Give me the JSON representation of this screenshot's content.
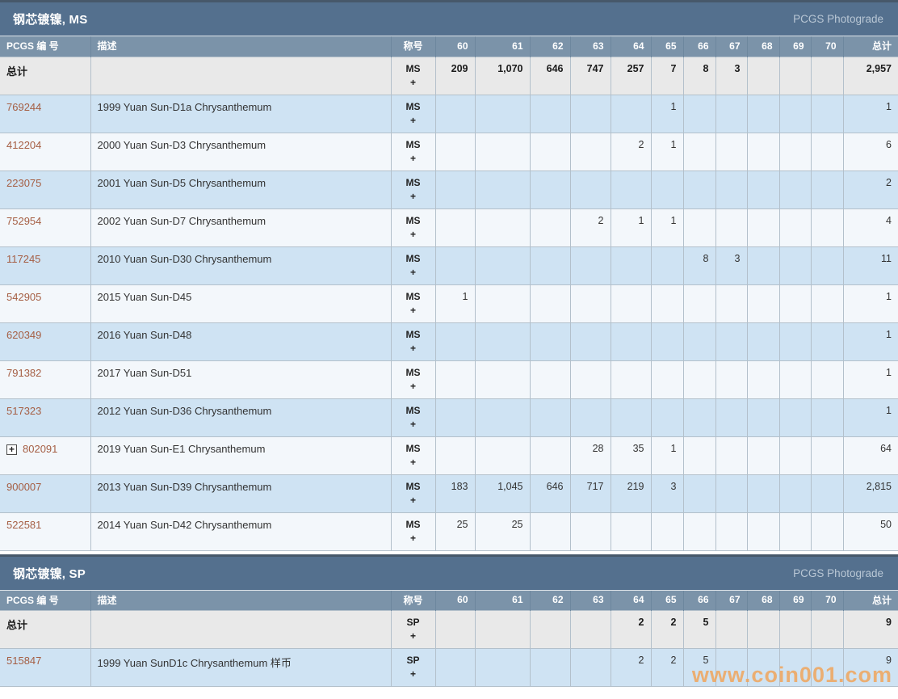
{
  "watermark": {
    "text": "www.coin001.com",
    "color": "#f0a55c"
  },
  "grades": [
    "60",
    "61",
    "62",
    "63",
    "64",
    "65",
    "66",
    "67",
    "68",
    "69",
    "70"
  ],
  "columns": {
    "pcgs": "PCGS 编 号",
    "desc": "描述",
    "designation": "称号",
    "total": "总计"
  },
  "colors": {
    "section_bar": "#54708e",
    "header_row": "#7b93a9",
    "totals_row_bg": "#e9e9e9",
    "row_blue": "#cfe3f3",
    "row_white": "#f3f7fb",
    "pcgs_link": "#a55e43",
    "watermark": "#f0a55c"
  },
  "sections": [
    {
      "title": "钢芯镀镍, MS",
      "photograde_label": "PCGS Photograde",
      "designation": "MS",
      "plus": "+",
      "totals_label": "总计",
      "totals": {
        "values": [
          "209",
          "1,070",
          "646",
          "747",
          "257",
          "7",
          "8",
          "3",
          "",
          "",
          ""
        ],
        "total": "2,957"
      },
      "rows": [
        {
          "pcgs": "769244",
          "expand": false,
          "desc": "1999 Yuan Sun-D1a Chrysanthemum",
          "values": [
            "",
            "",
            "",
            "",
            "",
            "1",
            "",
            "",
            "",
            "",
            ""
          ],
          "total": "1"
        },
        {
          "pcgs": "412204",
          "expand": false,
          "desc": "2000 Yuan Sun-D3 Chrysanthemum",
          "values": [
            "",
            "",
            "",
            "",
            "2",
            "1",
            "",
            "",
            "",
            "",
            ""
          ],
          "total": "6"
        },
        {
          "pcgs": "223075",
          "expand": false,
          "desc": "2001 Yuan Sun-D5 Chrysanthemum",
          "values": [
            "",
            "",
            "",
            "",
            "",
            "",
            "",
            "",
            "",
            "",
            ""
          ],
          "total": "2"
        },
        {
          "pcgs": "752954",
          "expand": false,
          "desc": "2002 Yuan Sun-D7 Chrysanthemum",
          "values": [
            "",
            "",
            "",
            "2",
            "1",
            "1",
            "",
            "",
            "",
            "",
            ""
          ],
          "total": "4"
        },
        {
          "pcgs": "117245",
          "expand": false,
          "desc": "2010 Yuan Sun-D30 Chrysanthemum",
          "values": [
            "",
            "",
            "",
            "",
            "",
            "",
            "8",
            "3",
            "",
            "",
            ""
          ],
          "total": "11"
        },
        {
          "pcgs": "542905",
          "expand": false,
          "desc": "2015 Yuan Sun-D45",
          "values": [
            "1",
            "",
            "",
            "",
            "",
            "",
            "",
            "",
            "",
            "",
            ""
          ],
          "total": "1"
        },
        {
          "pcgs": "620349",
          "expand": false,
          "desc": "2016 Yuan Sun-D48",
          "values": [
            "",
            "",
            "",
            "",
            "",
            "",
            "",
            "",
            "",
            "",
            ""
          ],
          "total": "1"
        },
        {
          "pcgs": "791382",
          "expand": false,
          "desc": "2017 Yuan Sun-D51",
          "values": [
            "",
            "",
            "",
            "",
            "",
            "",
            "",
            "",
            "",
            "",
            ""
          ],
          "total": "1"
        },
        {
          "pcgs": "517323",
          "expand": false,
          "desc": "2012 Yuan Sun-D36 Chrysanthemum",
          "values": [
            "",
            "",
            "",
            "",
            "",
            "",
            "",
            "",
            "",
            "",
            ""
          ],
          "total": "1"
        },
        {
          "pcgs": "802091",
          "expand": true,
          "desc": "2019 Yuan Sun-E1 Chrysanthemum",
          "values": [
            "",
            "",
            "",
            "28",
            "35",
            "1",
            "",
            "",
            "",
            "",
            ""
          ],
          "total": "64"
        },
        {
          "pcgs": "900007",
          "expand": false,
          "desc": "2013 Yuan Sun-D39 Chrysanthemum",
          "values": [
            "183",
            "1,045",
            "646",
            "717",
            "219",
            "3",
            "",
            "",
            "",
            "",
            ""
          ],
          "total": "2,815"
        },
        {
          "pcgs": "522581",
          "expand": false,
          "desc": "2014 Yuan Sun-D42 Chrysanthemum",
          "values": [
            "25",
            "25",
            "",
            "",
            "",
            "",
            "",
            "",
            "",
            "",
            ""
          ],
          "total": "50"
        }
      ]
    },
    {
      "title": "钢芯镀镍, SP",
      "photograde_label": "PCGS Photograde",
      "designation": "SP",
      "plus": "+",
      "totals_label": "总计",
      "totals": {
        "values": [
          "",
          "",
          "",
          "",
          "2",
          "2",
          "5",
          "",
          "",
          "",
          ""
        ],
        "total": "9"
      },
      "rows": [
        {
          "pcgs": "515847",
          "expand": false,
          "desc": "1999 Yuan SunD1c Chrysanthemum 样币",
          "values": [
            "",
            "",
            "",
            "",
            "2",
            "2",
            "5",
            "",
            "",
            "",
            ""
          ],
          "total": "9"
        }
      ]
    }
  ]
}
